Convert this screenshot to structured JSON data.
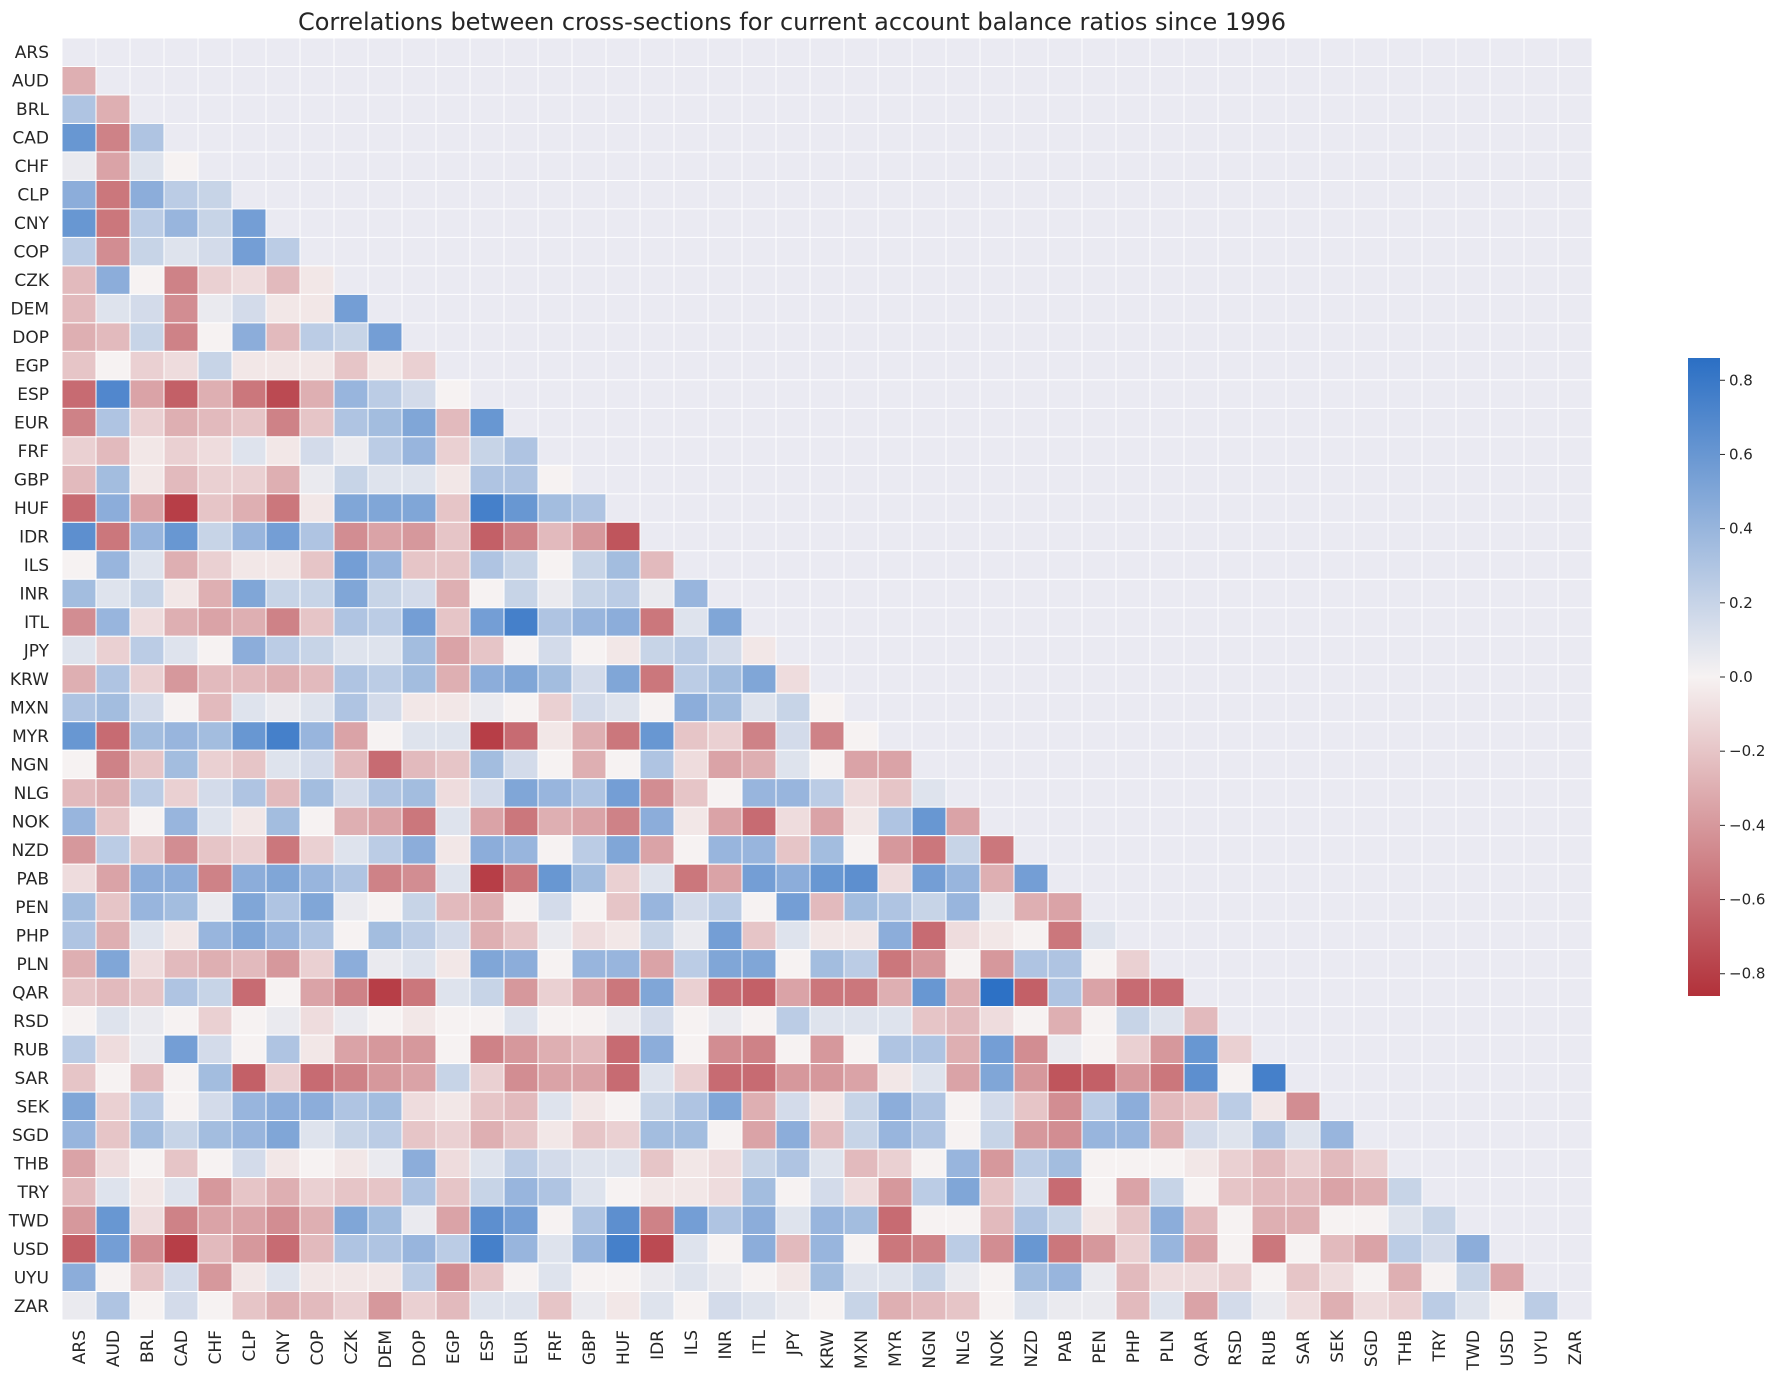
{
  "chart_data": {
    "type": "heatmap",
    "title": "Correlations between cross-sections for current account balance ratios since 1996",
    "xlabel": "",
    "ylabel": "",
    "mask": "upper-triangle (diagonal and above hidden)",
    "colormap": "diverging red-white-blue (red = negative, blue = positive)",
    "colors": {
      "neg": "#b2313a",
      "mid": "#f6f2f2",
      "pos": "#2b6fc4",
      "background": "#eaeaf2"
    },
    "color_range": [
      -0.86,
      0.86
    ],
    "colorbar_ticks": [
      0.8,
      0.6,
      0.4,
      0.2,
      0.0,
      -0.2,
      -0.4,
      -0.6,
      -0.8
    ],
    "colorbar_tick_labels": [
      "0.8",
      "0.6",
      "0.4",
      "0.2",
      "0.0",
      "−0.2",
      "−0.4",
      "−0.6",
      "−0.8"
    ],
    "labels": [
      "ARS",
      "AUD",
      "BRL",
      "CAD",
      "CHF",
      "CLP",
      "CNY",
      "COP",
      "CZK",
      "DEM",
      "DOP",
      "EGP",
      "ESP",
      "EUR",
      "FRF",
      "GBP",
      "HUF",
      "IDR",
      "ILS",
      "INR",
      "ITL",
      "JPY",
      "KRW",
      "MXN",
      "MYR",
      "NGN",
      "NLG",
      "NOK",
      "NZD",
      "PAB",
      "PEN",
      "PHP",
      "PLN",
      "QAR",
      "RSD",
      "RUB",
      "SAR",
      "SEK",
      "SGD",
      "THB",
      "TRY",
      "TWD",
      "USD",
      "UYU",
      "ZAR"
    ],
    "values": [
      [],
      [
        -0.3
      ],
      [
        0.3,
        -0.3
      ],
      [
        0.6,
        -0.5,
        0.3
      ],
      [
        0.05,
        -0.35,
        0.1,
        0.0
      ],
      [
        0.45,
        -0.55,
        0.45,
        0.25,
        0.2
      ],
      [
        0.6,
        -0.55,
        0.25,
        0.4,
        0.2,
        0.55
      ],
      [
        0.25,
        -0.45,
        0.2,
        0.1,
        0.15,
        0.55,
        0.25
      ],
      [
        -0.25,
        0.45,
        0.0,
        -0.5,
        -0.15,
        -0.1,
        -0.25,
        -0.05
      ],
      [
        -0.25,
        0.1,
        0.15,
        -0.45,
        0.05,
        0.15,
        -0.05,
        -0.05,
        0.55
      ],
      [
        -0.3,
        -0.25,
        0.2,
        -0.5,
        0.0,
        0.45,
        -0.25,
        0.25,
        0.2,
        0.55
      ],
      [
        -0.2,
        0.0,
        -0.15,
        -0.1,
        0.2,
        -0.05,
        -0.05,
        -0.05,
        -0.2,
        -0.05,
        -0.15
      ],
      [
        -0.6,
        0.7,
        -0.35,
        -0.65,
        -0.3,
        -0.55,
        -0.75,
        -0.3,
        0.4,
        0.25,
        0.15,
        0.0
      ],
      [
        -0.5,
        0.3,
        -0.15,
        -0.3,
        -0.25,
        -0.2,
        -0.5,
        -0.2,
        0.3,
        0.35,
        0.5,
        -0.25,
        0.6
      ],
      [
        -0.15,
        -0.25,
        -0.05,
        -0.15,
        -0.1,
        0.1,
        -0.05,
        0.15,
        0.05,
        0.25,
        0.4,
        -0.15,
        0.2,
        0.3
      ],
      [
        -0.25,
        0.35,
        -0.05,
        -0.25,
        -0.15,
        -0.15,
        -0.3,
        0.05,
        0.2,
        0.1,
        0.1,
        -0.05,
        0.3,
        0.3,
        0.0
      ],
      [
        -0.6,
        0.45,
        -0.35,
        -0.8,
        -0.2,
        -0.3,
        -0.55,
        -0.05,
        0.5,
        0.5,
        0.5,
        -0.2,
        0.75,
        0.6,
        0.35,
        0.3
      ],
      [
        0.65,
        -0.55,
        0.4,
        0.6,
        0.2,
        0.4,
        0.55,
        0.3,
        -0.45,
        -0.35,
        -0.4,
        -0.2,
        -0.65,
        -0.5,
        -0.25,
        -0.4,
        -0.7
      ],
      [
        0.0,
        0.4,
        0.1,
        -0.3,
        -0.15,
        -0.05,
        -0.05,
        -0.2,
        0.55,
        0.4,
        -0.2,
        -0.2,
        0.3,
        0.2,
        0.0,
        0.2,
        0.35,
        -0.25
      ],
      [
        0.35,
        0.1,
        0.2,
        -0.05,
        -0.3,
        0.5,
        0.2,
        0.2,
        0.5,
        0.2,
        0.15,
        -0.3,
        0.0,
        0.2,
        0.05,
        0.2,
        0.25,
        0.05,
        0.4
      ],
      [
        -0.45,
        0.4,
        -0.1,
        -0.3,
        -0.35,
        -0.3,
        -0.5,
        -0.2,
        0.3,
        0.25,
        0.55,
        -0.2,
        0.55,
        0.75,
        0.3,
        0.4,
        0.45,
        -0.55,
        0.1,
        0.5
      ],
      [
        0.1,
        -0.15,
        0.25,
        0.1,
        0.0,
        0.45,
        0.25,
        0.2,
        0.1,
        0.1,
        0.35,
        -0.35,
        -0.2,
        0.0,
        0.15,
        0.0,
        -0.05,
        0.2,
        0.25,
        0.15,
        -0.05
      ],
      [
        -0.3,
        0.3,
        -0.15,
        -0.4,
        -0.25,
        -0.25,
        -0.3,
        -0.25,
        0.3,
        0.25,
        0.35,
        -0.3,
        0.45,
        0.5,
        0.35,
        0.15,
        0.5,
        -0.55,
        0.25,
        0.35,
        0.5,
        -0.1
      ],
      [
        0.3,
        0.35,
        0.15,
        0.0,
        -0.25,
        0.1,
        0.05,
        0.1,
        0.3,
        0.15,
        -0.05,
        -0.05,
        0.05,
        0.0,
        -0.15,
        0.15,
        0.1,
        0.0,
        0.45,
        0.35,
        0.1,
        0.2,
        0.0
      ],
      [
        0.6,
        -0.6,
        0.35,
        0.4,
        0.35,
        0.6,
        0.75,
        0.4,
        -0.35,
        0.0,
        0.1,
        0.1,
        -0.8,
        -0.6,
        -0.05,
        -0.3,
        -0.55,
        0.6,
        -0.2,
        -0.15,
        -0.5,
        0.15,
        -0.5,
        0.0
      ],
      [
        0.0,
        -0.5,
        -0.2,
        0.35,
        -0.15,
        -0.2,
        0.1,
        0.15,
        -0.25,
        -0.6,
        -0.25,
        -0.2,
        0.35,
        0.15,
        0.0,
        -0.3,
        0.0,
        0.3,
        -0.1,
        -0.35,
        -0.3,
        0.1,
        0.0,
        -0.35,
        -0.35
      ],
      [
        -0.25,
        -0.3,
        0.25,
        -0.15,
        0.15,
        0.3,
        -0.25,
        0.35,
        0.15,
        0.3,
        0.35,
        -0.1,
        0.15,
        0.5,
        0.4,
        0.3,
        0.55,
        -0.45,
        -0.2,
        0.0,
        0.4,
        0.4,
        0.25,
        -0.1,
        -0.2,
        0.1
      ],
      [
        0.4,
        -0.2,
        0.0,
        0.4,
        0.1,
        -0.05,
        0.35,
        0.0,
        -0.3,
        -0.35,
        -0.55,
        0.1,
        -0.35,
        -0.55,
        -0.3,
        -0.35,
        -0.5,
        0.45,
        -0.05,
        -0.35,
        -0.6,
        -0.1,
        -0.35,
        -0.05,
        0.3,
        0.6,
        -0.35
      ],
      [
        -0.4,
        0.25,
        -0.2,
        -0.45,
        -0.2,
        -0.15,
        -0.55,
        -0.15,
        0.1,
        0.25,
        0.45,
        -0.05,
        0.45,
        0.4,
        0.0,
        0.25,
        0.5,
        -0.35,
        0.0,
        0.4,
        0.4,
        -0.2,
        0.35,
        0.0,
        -0.4,
        -0.55,
        0.2,
        -0.55
      ],
      [
        -0.1,
        -0.35,
        0.45,
        0.45,
        -0.5,
        0.45,
        0.5,
        0.4,
        0.3,
        -0.5,
        -0.45,
        0.1,
        -0.8,
        -0.55,
        0.6,
        0.35,
        -0.15,
        0.1,
        -0.55,
        -0.35,
        0.55,
        0.45,
        0.6,
        0.65,
        -0.1,
        0.55,
        0.4,
        -0.3,
        0.55
      ],
      [
        0.35,
        -0.2,
        0.4,
        0.35,
        0.05,
        0.5,
        0.3,
        0.5,
        0.05,
        0.0,
        0.2,
        -0.25,
        -0.3,
        0.0,
        0.15,
        0.0,
        -0.2,
        0.4,
        0.15,
        0.25,
        0.0,
        0.55,
        -0.25,
        0.35,
        0.3,
        0.2,
        0.4,
        0.05,
        -0.3,
        -0.35
      ],
      [
        0.3,
        -0.3,
        0.1,
        -0.05,
        0.4,
        0.5,
        0.4,
        0.3,
        0.0,
        0.35,
        0.25,
        0.15,
        -0.3,
        -0.2,
        0.05,
        -0.1,
        -0.05,
        0.2,
        0.05,
        0.55,
        -0.2,
        0.1,
        -0.05,
        -0.05,
        0.45,
        -0.6,
        -0.1,
        -0.05,
        0.0,
        -0.55,
        0.1
      ],
      [
        -0.3,
        0.5,
        -0.1,
        -0.25,
        -0.3,
        -0.25,
        -0.4,
        -0.15,
        0.45,
        0.05,
        0.1,
        -0.05,
        0.5,
        0.45,
        0.0,
        0.4,
        0.4,
        -0.35,
        0.25,
        0.5,
        0.5,
        0.0,
        0.35,
        0.25,
        -0.55,
        -0.4,
        0.0,
        -0.4,
        0.3,
        0.3,
        0.0,
        -0.15
      ],
      [
        -0.2,
        -0.25,
        -0.2,
        0.3,
        0.2,
        -0.6,
        0.0,
        -0.35,
        -0.5,
        -0.8,
        -0.55,
        0.1,
        0.2,
        -0.4,
        -0.15,
        -0.35,
        -0.55,
        0.5,
        -0.15,
        -0.6,
        -0.65,
        -0.35,
        -0.55,
        -0.55,
        -0.3,
        0.6,
        -0.3,
        0.85,
        -0.65,
        0.3,
        -0.35,
        -0.6,
        -0.6
      ],
      [
        0.0,
        0.1,
        0.05,
        0.0,
        -0.15,
        0.0,
        0.05,
        -0.1,
        0.05,
        0.0,
        -0.05,
        0.0,
        0.0,
        0.1,
        0.0,
        0.0,
        0.05,
        0.15,
        0.0,
        0.05,
        0.0,
        0.25,
        0.1,
        0.1,
        0.1,
        -0.2,
        -0.25,
        -0.1,
        0.0,
        -0.3,
        0.0,
        0.2,
        0.1,
        -0.25
      ],
      [
        0.25,
        -0.1,
        0.05,
        0.55,
        0.15,
        0.0,
        0.3,
        -0.05,
        -0.35,
        -0.4,
        -0.4,
        0.0,
        -0.5,
        -0.4,
        -0.3,
        -0.25,
        -0.6,
        0.45,
        0.0,
        -0.45,
        -0.5,
        0.0,
        -0.4,
        0.0,
        0.3,
        0.3,
        -0.3,
        0.55,
        -0.45,
        0.05,
        0.0,
        -0.15,
        -0.4,
        0.6,
        -0.15
      ],
      [
        -0.2,
        0.0,
        -0.25,
        0.0,
        0.35,
        -0.65,
        -0.15,
        -0.6,
        -0.5,
        -0.4,
        -0.35,
        0.2,
        -0.15,
        -0.45,
        -0.35,
        -0.35,
        -0.6,
        0.1,
        -0.15,
        -0.6,
        -0.6,
        -0.4,
        -0.4,
        -0.35,
        -0.05,
        0.1,
        -0.35,
        0.5,
        -0.4,
        -0.7,
        -0.65,
        -0.4,
        -0.55,
        0.65,
        0.0,
        0.75
      ],
      [
        0.5,
        -0.15,
        0.25,
        0.0,
        0.15,
        0.4,
        0.45,
        0.45,
        0.3,
        0.35,
        -0.1,
        -0.05,
        -0.2,
        -0.25,
        0.1,
        -0.05,
        0.0,
        0.2,
        0.3,
        0.5,
        -0.3,
        0.15,
        -0.05,
        0.2,
        0.45,
        0.3,
        0.0,
        0.15,
        -0.2,
        -0.45,
        0.25,
        0.45,
        -0.25,
        -0.2,
        0.25,
        -0.05,
        -0.45
      ],
      [
        0.4,
        -0.2,
        0.35,
        0.2,
        0.35,
        0.4,
        0.5,
        0.1,
        0.2,
        0.25,
        -0.2,
        -0.15,
        -0.3,
        -0.2,
        -0.05,
        -0.2,
        -0.15,
        0.35,
        0.35,
        0.0,
        -0.35,
        0.45,
        -0.25,
        0.2,
        0.4,
        0.3,
        0.0,
        0.2,
        -0.4,
        -0.45,
        0.4,
        0.4,
        -0.3,
        0.15,
        0.1,
        0.3,
        0.1,
        0.4
      ],
      [
        -0.35,
        -0.1,
        0.0,
        -0.2,
        0.0,
        0.15,
        -0.05,
        0.0,
        -0.05,
        0.05,
        0.45,
        -0.1,
        0.1,
        0.25,
        0.15,
        0.1,
        0.1,
        -0.2,
        -0.05,
        -0.1,
        0.2,
        0.3,
        0.1,
        -0.25,
        -0.15,
        0.0,
        0.4,
        -0.4,
        0.25,
        0.35,
        0.0,
        0.0,
        0.0,
        -0.05,
        -0.15,
        -0.25,
        -0.15,
        -0.25,
        -0.15
      ],
      [
        -0.25,
        0.1,
        -0.05,
        0.1,
        -0.4,
        -0.2,
        -0.3,
        -0.15,
        -0.2,
        -0.2,
        0.3,
        -0.2,
        0.2,
        0.4,
        0.3,
        0.1,
        0.0,
        -0.05,
        -0.05,
        -0.1,
        0.35,
        0.0,
        0.15,
        -0.1,
        -0.4,
        0.25,
        0.5,
        -0.2,
        0.15,
        -0.6,
        0.0,
        -0.35,
        0.2,
        0.0,
        -0.2,
        -0.25,
        -0.25,
        -0.35,
        -0.3,
        0.2
      ],
      [
        -0.4,
        0.6,
        -0.1,
        -0.5,
        -0.35,
        -0.35,
        -0.45,
        -0.3,
        0.5,
        0.35,
        0.05,
        -0.35,
        0.65,
        0.55,
        0.0,
        0.3,
        0.65,
        -0.5,
        0.55,
        0.3,
        0.45,
        0.1,
        0.4,
        0.35,
        -0.6,
        0.0,
        0.0,
        -0.25,
        0.3,
        0.2,
        -0.05,
        -0.2,
        0.45,
        -0.25,
        0.0,
        -0.3,
        -0.3,
        0.0,
        0.0,
        0.1,
        0.2
      ],
      [
        -0.65,
        0.55,
        -0.45,
        -0.8,
        -0.25,
        -0.4,
        -0.6,
        -0.25,
        0.3,
        0.3,
        0.4,
        0.25,
        0.75,
        0.4,
        0.1,
        0.4,
        0.75,
        -0.75,
        0.1,
        0.0,
        0.45,
        -0.25,
        0.4,
        0.0,
        -0.55,
        -0.5,
        0.25,
        -0.45,
        0.6,
        -0.55,
        -0.4,
        -0.15,
        0.4,
        -0.35,
        0.0,
        -0.55,
        0.0,
        -0.25,
        -0.35,
        0.25,
        0.15,
        0.45
      ],
      [
        0.45,
        0.0,
        -0.2,
        0.15,
        -0.4,
        -0.05,
        0.1,
        -0.05,
        -0.05,
        -0.05,
        0.25,
        -0.45,
        -0.2,
        0.0,
        0.1,
        0.0,
        0.0,
        0.05,
        0.1,
        0.05,
        0.0,
        -0.05,
        0.35,
        0.1,
        0.1,
        0.2,
        0.05,
        0.0,
        0.35,
        0.4,
        0.05,
        -0.25,
        -0.1,
        -0.1,
        -0.15,
        0.0,
        -0.2,
        -0.1,
        0.0,
        -0.3,
        0.0,
        0.2,
        -0.35
      ],
      [
        0.05,
        0.3,
        0.0,
        0.15,
        0.0,
        -0.2,
        -0.3,
        -0.25,
        -0.15,
        -0.4,
        -0.15,
        -0.25,
        0.1,
        0.1,
        -0.2,
        0.05,
        -0.05,
        0.1,
        0.0,
        0.15,
        0.1,
        0.05,
        0.0,
        0.2,
        -0.3,
        -0.25,
        -0.2,
        0.0,
        0.1,
        0.05,
        0.05,
        -0.25,
        0.1,
        -0.35,
        0.15,
        0.05,
        -0.1,
        -0.3,
        -0.1,
        -0.15,
        0.25,
        0.1,
        0.0,
        0.25
      ]
    ]
  }
}
